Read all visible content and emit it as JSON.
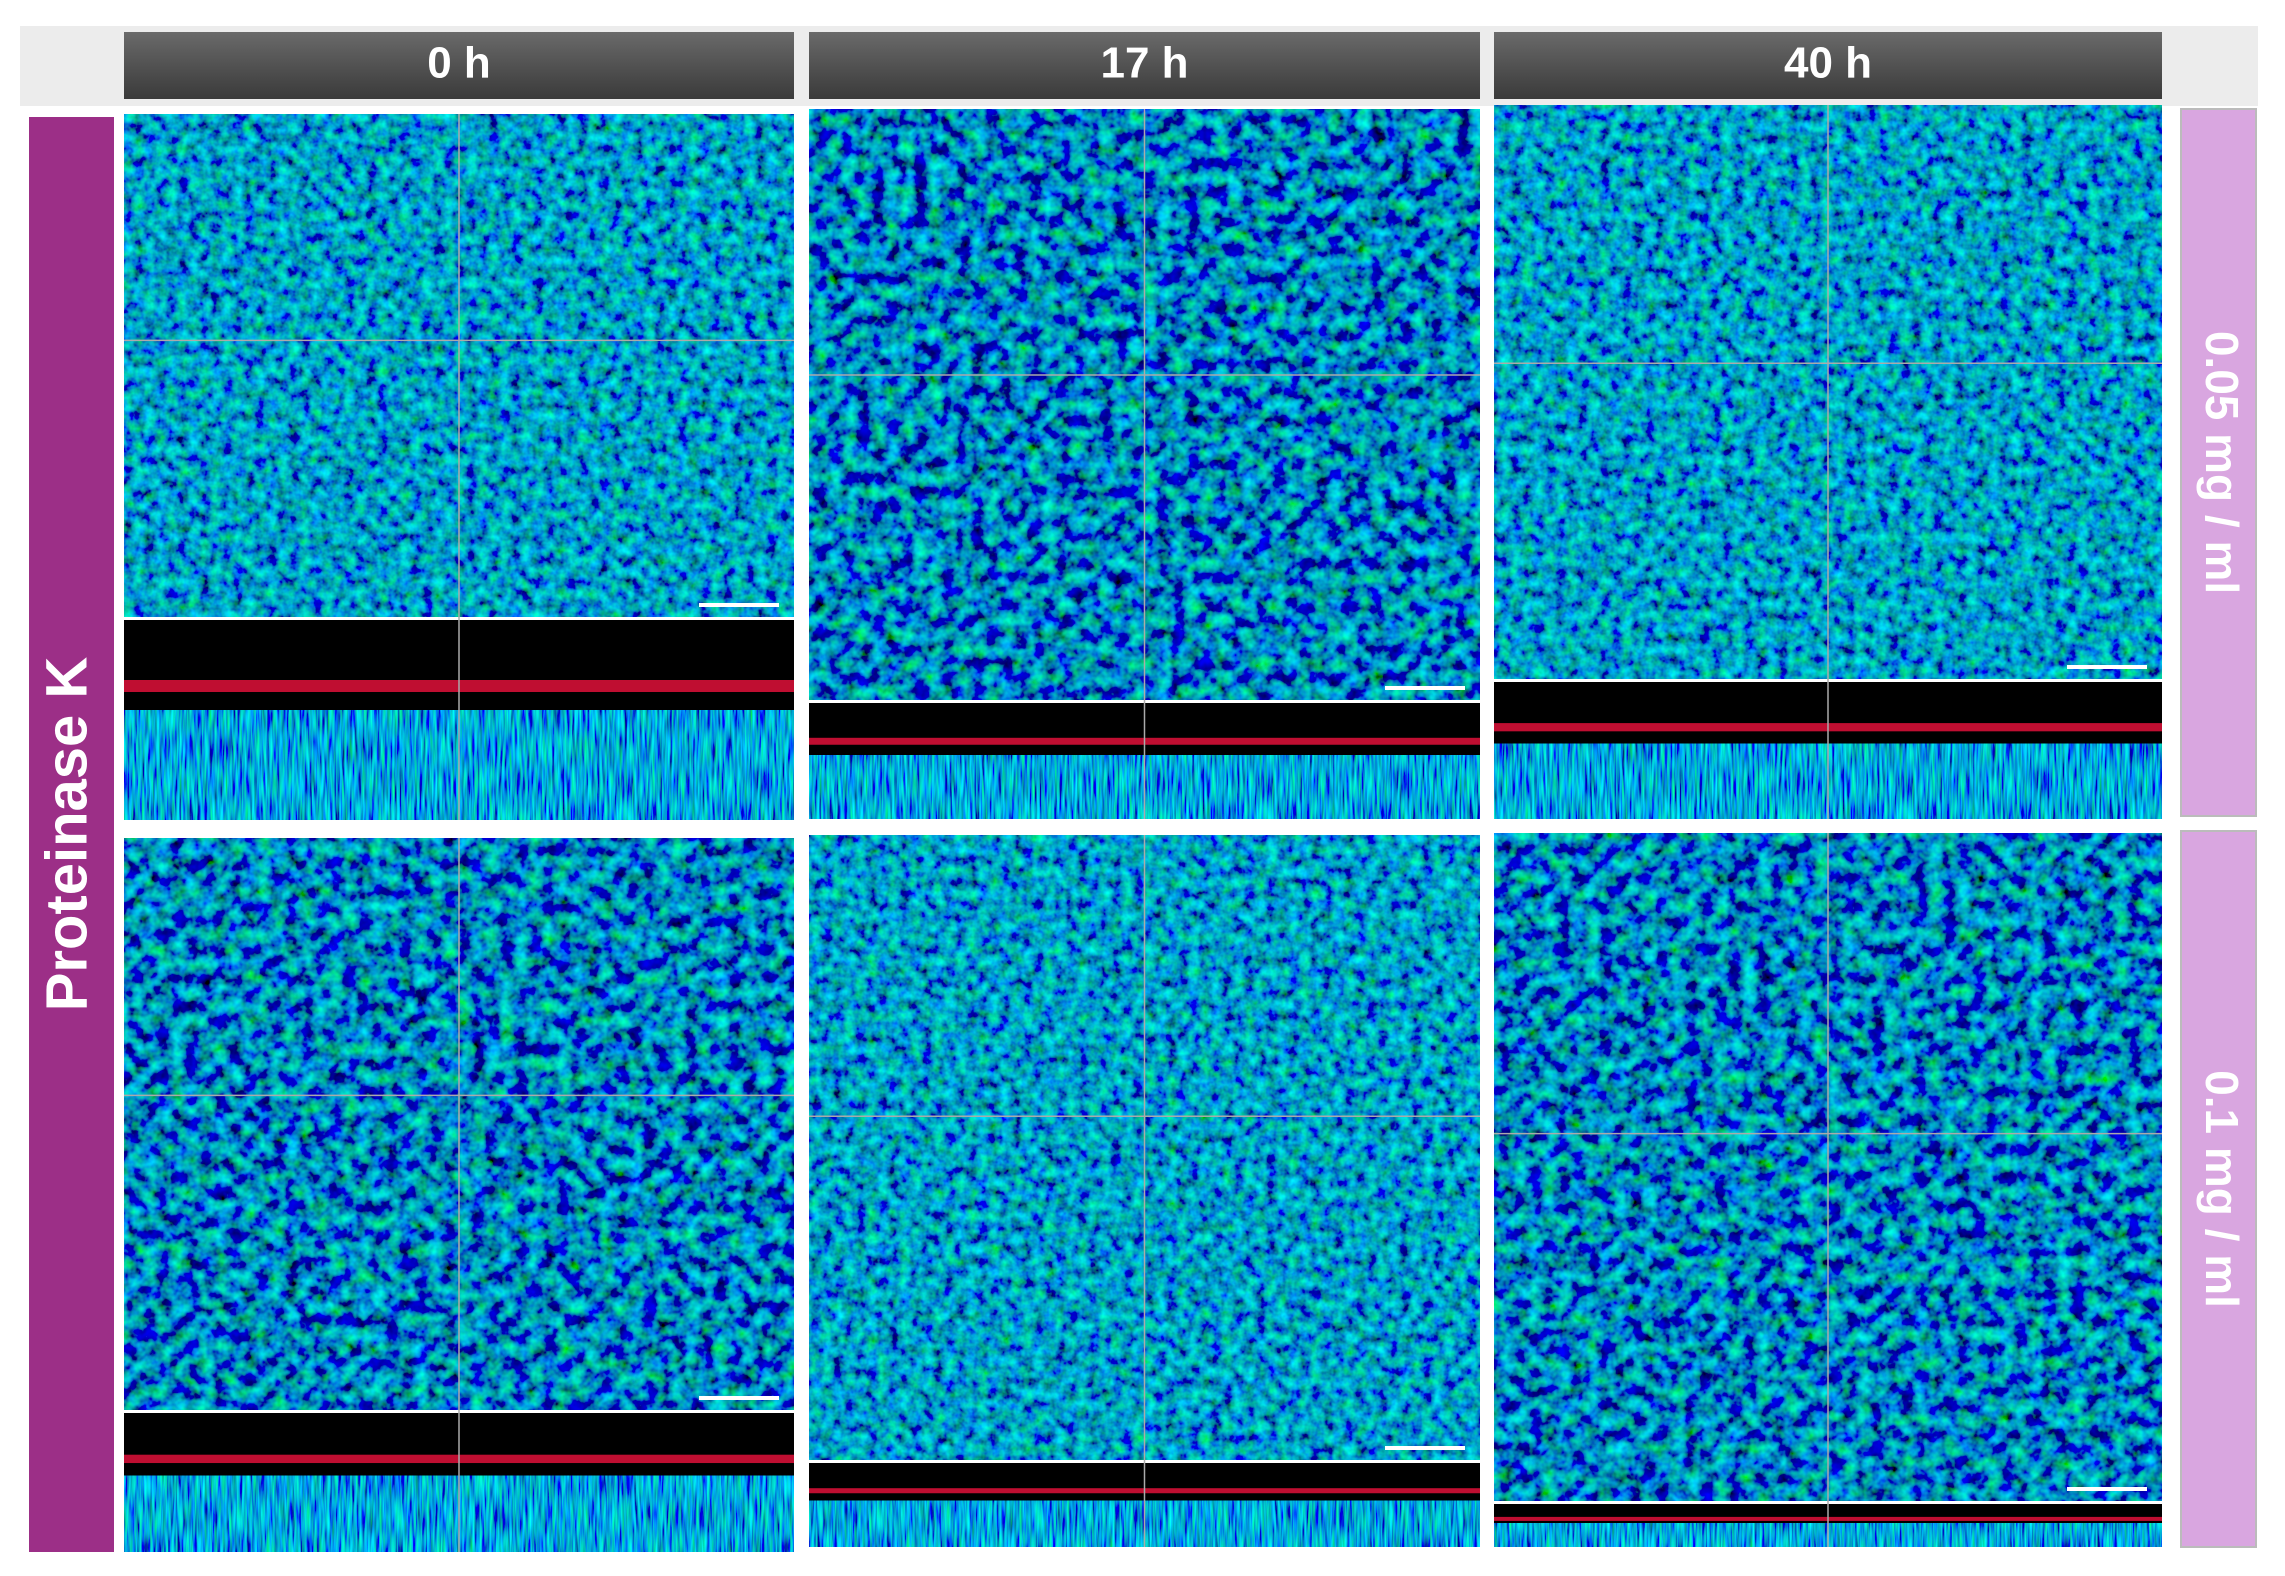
{
  "columns": [
    "0 h",
    "17 h",
    "40 h"
  ],
  "rows": [
    "0.05 mg / ml",
    "0.1 mg / ml"
  ],
  "side_label": "Proteinase K"
}
